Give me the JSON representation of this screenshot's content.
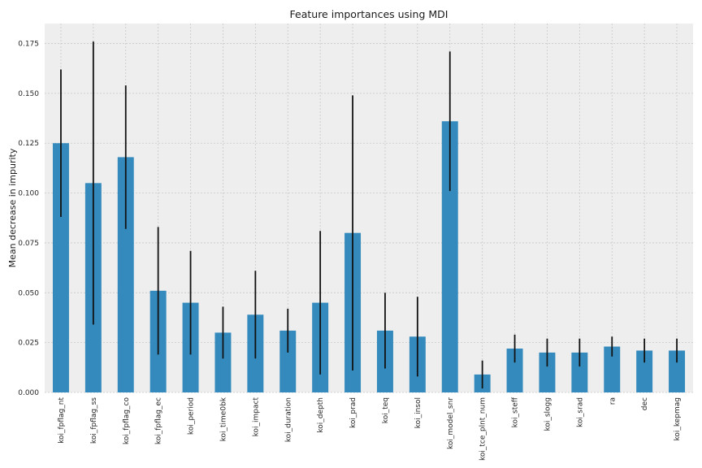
{
  "chart_data": {
    "type": "bar",
    "title": "Feature importances using MDI",
    "xlabel": "",
    "ylabel": "Mean decrease in impurity",
    "ylim": [
      0,
      0.185
    ],
    "yticks": [
      0.0,
      0.025,
      0.05,
      0.075,
      0.1,
      0.125,
      0.15,
      0.175
    ],
    "ytick_labels": [
      "0.000",
      "0.025",
      "0.050",
      "0.075",
      "0.100",
      "0.125",
      "0.150",
      "0.175"
    ],
    "grid": true,
    "error_bars": true,
    "categories": [
      "koi_fpflag_nt",
      "koi_fpflag_ss",
      "koi_fpflag_co",
      "koi_fpflag_ec",
      "koi_period",
      "koi_time0bk",
      "koi_impact",
      "koi_duration",
      "koi_depth",
      "koi_prad",
      "koi_teq",
      "koi_insol",
      "koi_model_snr",
      "koi_tce_plnt_num",
      "koi_steff",
      "koi_slogg",
      "koi_srad",
      "ra",
      "dec",
      "koi_kepmag"
    ],
    "values": [
      0.125,
      0.105,
      0.118,
      0.051,
      0.045,
      0.03,
      0.039,
      0.031,
      0.045,
      0.08,
      0.031,
      0.028,
      0.136,
      0.009,
      0.022,
      0.02,
      0.02,
      0.023,
      0.021,
      0.021
    ],
    "errors": [
      0.037,
      0.071,
      0.036,
      0.032,
      0.026,
      0.013,
      0.022,
      0.011,
      0.036,
      0.069,
      0.019,
      0.02,
      0.035,
      0.007,
      0.007,
      0.007,
      0.007,
      0.005,
      0.006,
      0.006
    ],
    "colors": {
      "bar": "#348abd",
      "error": "#111111",
      "background": "#eeeeee",
      "grid": "#c8c8c8"
    }
  }
}
